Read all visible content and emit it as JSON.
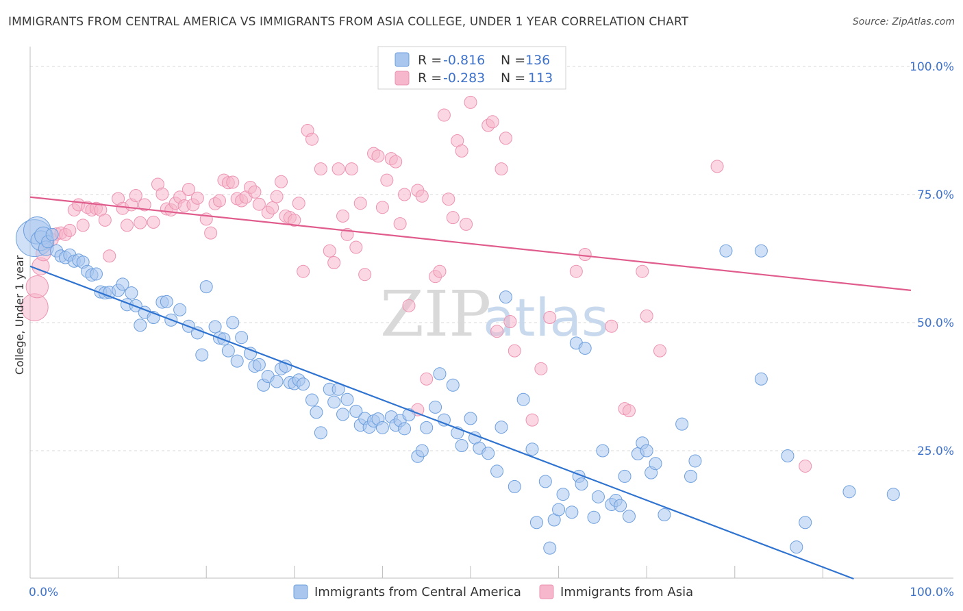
{
  "header": {
    "title": "IMMIGRANTS FROM CENTRAL AMERICA VS IMMIGRANTS FROM ASIA COLLEGE, UNDER 1 YEAR CORRELATION CHART",
    "source": "Source: ZipAtlas.com"
  },
  "watermark": {
    "zip": "ZIP",
    "atlas": "atlas"
  },
  "colors": {
    "blue_fill": "#a9c6ee",
    "blue_stroke": "#6d9fdd",
    "blue_line": "#2f73d0",
    "pink_fill": "#f6b6cb",
    "pink_stroke": "#ec93b1",
    "pink_line": "#e05c8c",
    "grid": "#d8d8d8",
    "tick_text": "#3f73c9"
  },
  "legend": {
    "r_label": "R =",
    "n_label": "N =",
    "rows": [
      {
        "r": "-0.816",
        "n": "136"
      },
      {
        "r": "-0.283",
        "n": "113"
      }
    ]
  },
  "bottom_legend": [
    {
      "label": "Immigrants from Central America"
    },
    {
      "label": "Immigrants from Asia"
    }
  ],
  "chart_data": {
    "type": "scatter",
    "title": "IMMIGRANTS FROM CENTRAL AMERICA VS IMMIGRANTS FROM ASIA COLLEGE, UNDER 1 YEAR CORRELATION CHART",
    "xlabel": "",
    "ylabel": "College, Under 1 year",
    "xlim": [
      0,
      100
    ],
    "ylim": [
      0,
      102
    ],
    "x_ticks": [
      {
        "value": 0,
        "label": "0.0%"
      },
      {
        "value": 100,
        "label": "100.0%"
      }
    ],
    "y_ticks": [
      {
        "value": 25,
        "label": "25.0%"
      },
      {
        "value": 50,
        "label": "50.0%"
      },
      {
        "value": 75,
        "label": "75.0%"
      },
      {
        "value": 100,
        "label": "100.0%"
      }
    ],
    "grid": "horizontal dashed",
    "series": [
      {
        "name": "Immigrants from Central America",
        "trend": {
          "x0": 0,
          "y0": 61,
          "x1": 93.5,
          "y1": 0
        },
        "points": [
          [
            0.5,
            66.5,
            3
          ],
          [
            0.8,
            68,
            2.2
          ],
          [
            1.2,
            66,
            1.6
          ],
          [
            1.5,
            67,
            1.4
          ],
          [
            1.8,
            64.5,
            1.2
          ],
          [
            2,
            65.8,
            1
          ],
          [
            2.5,
            67.2,
            1
          ],
          [
            3,
            64,
            1
          ],
          [
            3.5,
            63,
            1
          ],
          [
            4,
            62.7,
            1
          ],
          [
            4.5,
            63.2,
            1
          ],
          [
            5,
            62,
            1
          ],
          [
            5.5,
            62.2,
            1
          ],
          [
            6,
            61.8,
            1
          ],
          [
            6.5,
            60,
            1
          ],
          [
            7,
            59.3,
            1
          ],
          [
            7.5,
            59.5,
            1
          ],
          [
            8,
            56,
            1
          ],
          [
            8.5,
            55.8,
            1
          ],
          [
            9,
            55.9,
            1
          ],
          [
            10,
            56.3,
            1
          ],
          [
            10.5,
            57.5,
            1
          ],
          [
            11,
            53.5,
            1
          ],
          [
            11.5,
            55.8,
            1
          ],
          [
            12,
            53.3,
            1
          ],
          [
            12.5,
            49.5,
            1
          ],
          [
            13,
            52,
            1
          ],
          [
            14,
            51,
            1
          ],
          [
            15,
            54,
            1
          ],
          [
            15.5,
            54.1,
            1
          ],
          [
            16,
            50.5,
            1
          ],
          [
            17,
            52.5,
            1
          ],
          [
            18,
            49.3,
            1
          ],
          [
            19,
            48,
            1
          ],
          [
            19.5,
            43.7,
            1
          ],
          [
            20,
            57,
            1
          ],
          [
            21,
            49.2,
            1
          ],
          [
            21.5,
            47,
            1
          ],
          [
            22,
            46.8,
            1
          ],
          [
            22.5,
            44.5,
            1
          ],
          [
            23,
            50,
            1
          ],
          [
            23.5,
            42.5,
            1
          ],
          [
            24,
            47.1,
            1
          ],
          [
            25,
            44,
            1
          ],
          [
            25.5,
            41.5,
            1
          ],
          [
            26,
            41.8,
            1
          ],
          [
            26.5,
            37.8,
            1
          ],
          [
            27,
            39.5,
            1
          ],
          [
            28,
            38.5,
            1
          ],
          [
            28.5,
            41,
            1
          ],
          [
            29,
            41.5,
            1
          ],
          [
            29.5,
            38.3,
            1
          ],
          [
            30,
            38.1,
            1
          ],
          [
            30.5,
            38.8,
            1
          ],
          [
            31,
            38,
            1
          ],
          [
            32,
            34.9,
            1
          ],
          [
            32.5,
            32.5,
            1
          ],
          [
            33,
            28.5,
            1
          ],
          [
            34,
            37,
            1
          ],
          [
            34.5,
            34.5,
            1
          ],
          [
            35,
            37,
            1
          ],
          [
            35.5,
            32.1,
            1
          ],
          [
            36,
            35,
            1
          ],
          [
            37,
            32.7,
            1
          ],
          [
            37.5,
            30,
            1
          ],
          [
            38,
            31.3,
            1
          ],
          [
            38.5,
            29.6,
            1
          ],
          [
            39,
            30.8,
            1
          ],
          [
            39.5,
            31.2,
            1
          ],
          [
            40,
            29.5,
            1
          ],
          [
            41,
            31.6,
            1
          ],
          [
            41.5,
            30,
            1
          ],
          [
            42,
            30.9,
            1
          ],
          [
            42.5,
            29.3,
            1
          ],
          [
            43,
            32,
            1
          ],
          [
            44,
            23.9,
            1
          ],
          [
            44.5,
            25,
            1
          ],
          [
            45,
            29.5,
            1
          ],
          [
            46,
            33.5,
            1
          ],
          [
            46.5,
            40,
            1
          ],
          [
            47,
            31,
            1
          ],
          [
            48,
            37.8,
            1
          ],
          [
            48.5,
            28.5,
            1
          ],
          [
            49,
            26,
            1
          ],
          [
            50,
            31.3,
            1
          ],
          [
            50.5,
            27.5,
            1
          ],
          [
            51,
            25.5,
            1
          ],
          [
            52,
            24.5,
            1
          ],
          [
            53,
            21,
            1
          ],
          [
            53.5,
            29.6,
            1
          ],
          [
            54,
            55,
            1
          ],
          [
            55,
            18,
            1
          ],
          [
            56,
            35,
            1
          ],
          [
            57,
            25.3,
            1
          ],
          [
            57.5,
            11,
            1
          ],
          [
            58.5,
            19,
            1
          ],
          [
            59,
            6,
            1
          ],
          [
            59.5,
            11.5,
            1
          ],
          [
            60,
            13.5,
            1
          ],
          [
            60.5,
            16.5,
            1
          ],
          [
            61.5,
            13,
            1
          ],
          [
            62,
            46,
            1
          ],
          [
            62.3,
            20,
            1
          ],
          [
            62.6,
            18.5,
            1
          ],
          [
            63,
            45,
            1
          ],
          [
            64,
            12,
            1
          ],
          [
            64.5,
            16,
            1
          ],
          [
            65,
            25,
            1
          ],
          [
            66,
            14.5,
            1
          ],
          [
            66.5,
            15.3,
            1
          ],
          [
            67,
            14.3,
            1
          ],
          [
            67.5,
            20,
            1
          ],
          [
            68,
            12.2,
            1
          ],
          [
            69,
            24.4,
            1
          ],
          [
            69.5,
            26.5,
            1
          ],
          [
            70,
            25,
            1
          ],
          [
            70.5,
            20.7,
            1
          ],
          [
            71,
            22.5,
            1
          ],
          [
            72,
            12.5,
            1
          ],
          [
            74,
            30.2,
            1
          ],
          [
            75,
            20,
            1
          ],
          [
            75.5,
            23,
            1
          ],
          [
            79,
            64,
            1
          ],
          [
            83,
            39,
            1
          ],
          [
            83,
            64,
            1
          ],
          [
            86,
            24,
            1
          ],
          [
            87,
            6.2,
            1
          ],
          [
            88,
            11,
            1
          ],
          [
            93,
            17,
            1
          ],
          [
            98,
            16.5,
            1
          ]
        ]
      },
      {
        "name": "Immigrants from Asia",
        "trend": {
          "x0": 0,
          "y0": 74.5,
          "x1": 100,
          "y1": 56.3
        },
        "points": [
          [
            0.5,
            53,
            2.2
          ],
          [
            0.8,
            57,
            1.8
          ],
          [
            1.2,
            61,
            1.4
          ],
          [
            1.5,
            63.5,
            1.2
          ],
          [
            2,
            65.5,
            1
          ],
          [
            2.5,
            66.2,
            1
          ],
          [
            3,
            67.3,
            1
          ],
          [
            3.5,
            67.5,
            1
          ],
          [
            4,
            67.2,
            1
          ],
          [
            4.5,
            68,
            1
          ],
          [
            5,
            72,
            1
          ],
          [
            5.5,
            73,
            1
          ],
          [
            6,
            69,
            1
          ],
          [
            6.5,
            72.5,
            1
          ],
          [
            7,
            72,
            1
          ],
          [
            7.5,
            72.3,
            1
          ],
          [
            8,
            72,
            1
          ],
          [
            8.5,
            70,
            1
          ],
          [
            9,
            63,
            1
          ],
          [
            10,
            74.2,
            1
          ],
          [
            10.5,
            72.3,
            1
          ],
          [
            11,
            69,
            1
          ],
          [
            11.5,
            73,
            1
          ],
          [
            12,
            74.8,
            1
          ],
          [
            12.5,
            69.5,
            1
          ],
          [
            13,
            73,
            1
          ],
          [
            14,
            69.6,
            1
          ],
          [
            14.5,
            77,
            1
          ],
          [
            15,
            75.1,
            1
          ],
          [
            15.5,
            72.2,
            1
          ],
          [
            16,
            72,
            1
          ],
          [
            16.5,
            73.3,
            1
          ],
          [
            17,
            74.5,
            1
          ],
          [
            17.5,
            72.8,
            1
          ],
          [
            18,
            76,
            1
          ],
          [
            18.5,
            73,
            1
          ],
          [
            19,
            74.3,
            1
          ],
          [
            20,
            70.2,
            1
          ],
          [
            20.5,
            67.5,
            1
          ],
          [
            21,
            73.2,
            1
          ],
          [
            21.5,
            73.8,
            1
          ],
          [
            22,
            77.8,
            1
          ],
          [
            22.5,
            77.3,
            1
          ],
          [
            23,
            77.4,
            1
          ],
          [
            23.5,
            74.2,
            1
          ],
          [
            24,
            73.8,
            1
          ],
          [
            24.5,
            74.5,
            1
          ],
          [
            25,
            76.4,
            1
          ],
          [
            25.5,
            75.5,
            1
          ],
          [
            26,
            73.1,
            1
          ],
          [
            27,
            71.5,
            1
          ],
          [
            27.5,
            72.4,
            1
          ],
          [
            28,
            74.6,
            1
          ],
          [
            28.5,
            77.5,
            1
          ],
          [
            29,
            70.8,
            1
          ],
          [
            29.5,
            70.5,
            1
          ],
          [
            30,
            70,
            1
          ],
          [
            30.5,
            73.3,
            1
          ],
          [
            31,
            60,
            1
          ],
          [
            31.5,
            87.5,
            1
          ],
          [
            32,
            85.8,
            1
          ],
          [
            33,
            80,
            1
          ],
          [
            34,
            64,
            1
          ],
          [
            34.5,
            61.7,
            1
          ],
          [
            35,
            80,
            1
          ],
          [
            35.5,
            70.8,
            1
          ],
          [
            36,
            67.2,
            1
          ],
          [
            36.5,
            80,
            1
          ],
          [
            37,
            64.7,
            1
          ],
          [
            37.5,
            73.3,
            1
          ],
          [
            38,
            59.4,
            1
          ],
          [
            39,
            83,
            1
          ],
          [
            39.5,
            82.5,
            1
          ],
          [
            40,
            72.5,
            1
          ],
          [
            40.5,
            77.8,
            1
          ],
          [
            41,
            82,
            1
          ],
          [
            41.5,
            81.4,
            1
          ],
          [
            42,
            69.3,
            1
          ],
          [
            42.5,
            75,
            1
          ],
          [
            43,
            53.3,
            1
          ],
          [
            44,
            75.8,
            1
          ],
          [
            44.5,
            74.7,
            1
          ],
          [
            45,
            39,
            1
          ],
          [
            46,
            59,
            1
          ],
          [
            46.5,
            60,
            1
          ],
          [
            47,
            90.5,
            1
          ],
          [
            47.5,
            74.1,
            1
          ],
          [
            48,
            70.5,
            1
          ],
          [
            48.5,
            85.5,
            1
          ],
          [
            49,
            83.5,
            1
          ],
          [
            49.5,
            69.2,
            1
          ],
          [
            50,
            93,
            1
          ],
          [
            52,
            88.5,
            1
          ],
          [
            52.5,
            89.2,
            1
          ],
          [
            53,
            48.3,
            1
          ],
          [
            53.5,
            80,
            1
          ],
          [
            54,
            86,
            1
          ],
          [
            54.5,
            50.2,
            1
          ],
          [
            55,
            44.5,
            1
          ],
          [
            57,
            31,
            1
          ],
          [
            58,
            41,
            1
          ],
          [
            59,
            51,
            1
          ],
          [
            62,
            60,
            1
          ],
          [
            63,
            63.3,
            1
          ],
          [
            66,
            49.3,
            1
          ],
          [
            67.5,
            33.2,
            1
          ],
          [
            68,
            32.8,
            1
          ],
          [
            70,
            51.3,
            1
          ],
          [
            78,
            80.5,
            1
          ],
          [
            88,
            22,
            1
          ],
          [
            71.5,
            44.5,
            1
          ],
          [
            69.5,
            60,
            1
          ],
          [
            44,
            33,
            1
          ]
        ]
      }
    ]
  }
}
